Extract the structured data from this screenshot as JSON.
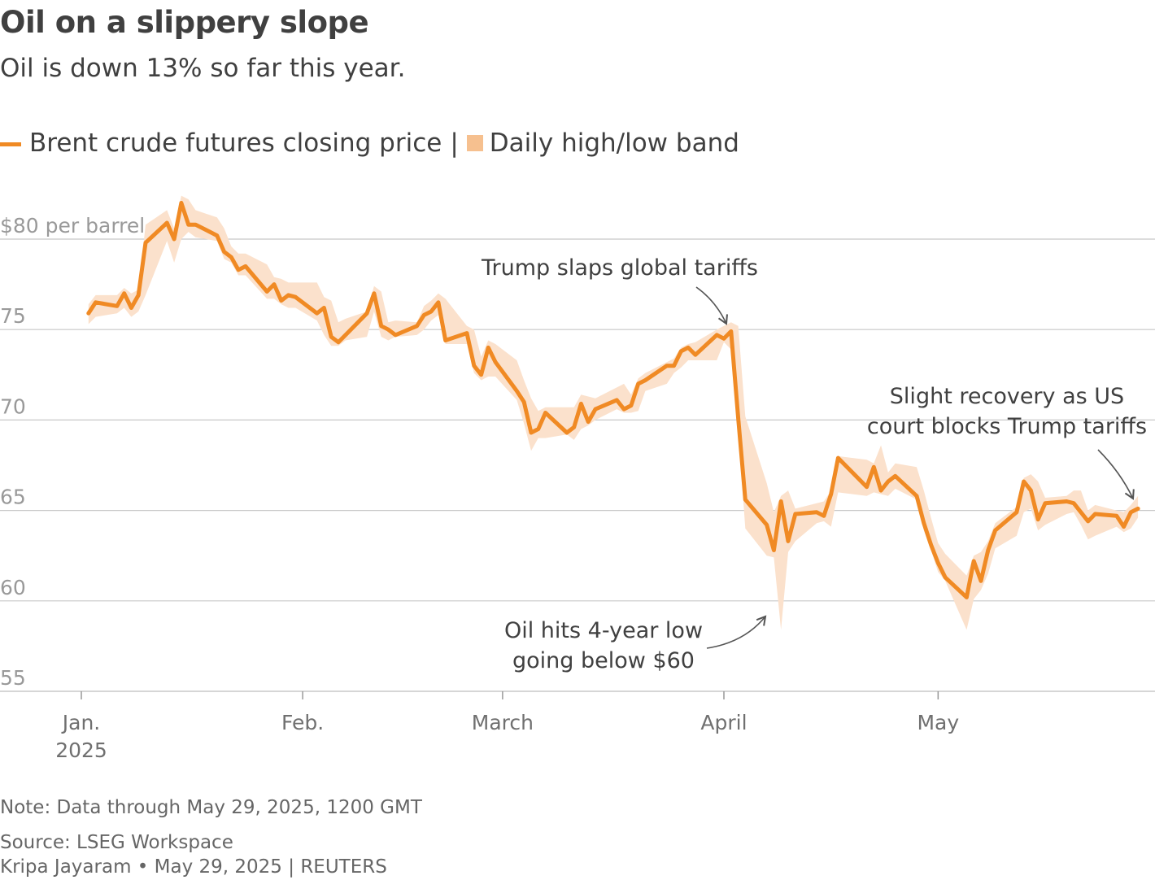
{
  "title": "Oil on a slippery slope",
  "subtitle": "Oil is down 13% so far this year.",
  "legend": {
    "line_label": "Brent crude futures closing price",
    "separator": "|",
    "band_label": "Daily high/low band"
  },
  "note": "Note: Data through May 29, 2025, 1200 GMT",
  "source": "Source: LSEG Workspace",
  "credit": "Kripa Jayaram • May 29, 2025 | REUTERS",
  "colors": {
    "line": "#f08a24",
    "band": "#fbe1cc",
    "grid": "#c8c8c8",
    "axis_text": "#999999",
    "label_text": "#404040"
  },
  "chart_data": {
    "type": "line",
    "title": "Oil on a slippery slope",
    "ylabel": "$80 per barrel",
    "ylim": [
      55,
      80
    ],
    "y_ticks": [
      {
        "value": 80,
        "label": "$80 per barrel"
      },
      {
        "value": 75,
        "label": "75"
      },
      {
        "value": 70,
        "label": "70"
      },
      {
        "value": 65,
        "label": "65"
      },
      {
        "value": 60,
        "label": "60"
      },
      {
        "value": 55,
        "label": "55"
      }
    ],
    "x_range": [
      "2024-12-31",
      "2025-05-29"
    ],
    "x_ticks": [
      {
        "date": "2025-01-01",
        "label": "Jan.",
        "sublabel": "2025"
      },
      {
        "date": "2025-02-01",
        "label": "Feb.",
        "sublabel": ""
      },
      {
        "date": "2025-03-01",
        "label": "March",
        "sublabel": ""
      },
      {
        "date": "2025-04-01",
        "label": "April",
        "sublabel": ""
      },
      {
        "date": "2025-05-01",
        "label": "May",
        "sublabel": ""
      }
    ],
    "grid": true,
    "legend_position": "top-left",
    "series": [
      {
        "name": "Brent crude futures closing price",
        "points": [
          [
            "2025-01-02",
            75.9
          ],
          [
            "2025-01-03",
            76.5
          ],
          [
            "2025-01-06",
            76.3
          ],
          [
            "2025-01-07",
            77.0
          ],
          [
            "2025-01-08",
            76.2
          ],
          [
            "2025-01-09",
            76.9
          ],
          [
            "2025-01-10",
            79.8
          ],
          [
            "2025-01-13",
            80.9
          ],
          [
            "2025-01-14",
            80.0
          ],
          [
            "2025-01-15",
            82.0
          ],
          [
            "2025-01-16",
            80.8
          ],
          [
            "2025-01-17",
            80.8
          ],
          [
            "2025-01-20",
            80.2
          ],
          [
            "2025-01-21",
            79.3
          ],
          [
            "2025-01-22",
            79.0
          ],
          [
            "2025-01-23",
            78.3
          ],
          [
            "2025-01-24",
            78.5
          ],
          [
            "2025-01-27",
            77.1
          ],
          [
            "2025-01-28",
            77.5
          ],
          [
            "2025-01-29",
            76.6
          ],
          [
            "2025-01-30",
            76.9
          ],
          [
            "2025-01-31",
            76.8
          ],
          [
            "2025-02-03",
            75.9
          ],
          [
            "2025-02-04",
            76.2
          ],
          [
            "2025-02-05",
            74.6
          ],
          [
            "2025-02-06",
            74.3
          ],
          [
            "2025-02-07",
            74.7
          ],
          [
            "2025-02-10",
            75.9
          ],
          [
            "2025-02-11",
            77.0
          ],
          [
            "2025-02-12",
            75.2
          ],
          [
            "2025-02-13",
            75.0
          ],
          [
            "2025-02-14",
            74.7
          ],
          [
            "2025-02-17",
            75.2
          ],
          [
            "2025-02-18",
            75.8
          ],
          [
            "2025-02-19",
            76.0
          ],
          [
            "2025-02-20",
            76.5
          ],
          [
            "2025-02-21",
            74.4
          ],
          [
            "2025-02-24",
            74.8
          ],
          [
            "2025-02-25",
            73.0
          ],
          [
            "2025-02-26",
            72.5
          ],
          [
            "2025-02-27",
            74.0
          ],
          [
            "2025-02-28",
            73.2
          ],
          [
            "2025-03-03",
            71.6
          ],
          [
            "2025-03-04",
            71.0
          ],
          [
            "2025-03-05",
            69.3
          ],
          [
            "2025-03-06",
            69.5
          ],
          [
            "2025-03-07",
            70.4
          ],
          [
            "2025-03-10",
            69.3
          ],
          [
            "2025-03-11",
            69.6
          ],
          [
            "2025-03-12",
            70.9
          ],
          [
            "2025-03-13",
            69.9
          ],
          [
            "2025-03-14",
            70.6
          ],
          [
            "2025-03-17",
            71.1
          ],
          [
            "2025-03-18",
            70.6
          ],
          [
            "2025-03-19",
            70.8
          ],
          [
            "2025-03-20",
            72.0
          ],
          [
            "2025-03-21",
            72.2
          ],
          [
            "2025-03-24",
            73.0
          ],
          [
            "2025-03-25",
            73.0
          ],
          [
            "2025-03-26",
            73.8
          ],
          [
            "2025-03-27",
            74.0
          ],
          [
            "2025-03-28",
            73.6
          ],
          [
            "2025-03-31",
            74.7
          ],
          [
            "2025-04-01",
            74.5
          ],
          [
            "2025-04-02",
            74.9
          ],
          [
            "2025-04-03",
            70.1
          ],
          [
            "2025-04-04",
            65.6
          ],
          [
            "2025-04-07",
            64.2
          ],
          [
            "2025-04-08",
            62.8
          ],
          [
            "2025-04-09",
            65.5
          ],
          [
            "2025-04-10",
            63.3
          ],
          [
            "2025-04-11",
            64.8
          ],
          [
            "2025-04-14",
            64.9
          ],
          [
            "2025-04-15",
            64.7
          ],
          [
            "2025-04-16",
            65.9
          ],
          [
            "2025-04-17",
            67.9
          ],
          [
            "2025-04-21",
            66.3
          ],
          [
            "2025-04-22",
            67.4
          ],
          [
            "2025-04-23",
            66.1
          ],
          [
            "2025-04-24",
            66.6
          ],
          [
            "2025-04-25",
            66.9
          ],
          [
            "2025-04-28",
            65.8
          ],
          [
            "2025-04-29",
            64.3
          ],
          [
            "2025-04-30",
            63.1
          ],
          [
            "2025-05-01",
            62.1
          ],
          [
            "2025-05-02",
            61.3
          ],
          [
            "2025-05-05",
            60.2
          ],
          [
            "2025-05-06",
            62.2
          ],
          [
            "2025-05-07",
            61.1
          ],
          [
            "2025-05-08",
            62.8
          ],
          [
            "2025-05-09",
            63.9
          ],
          [
            "2025-05-12",
            64.9
          ],
          [
            "2025-05-13",
            66.6
          ],
          [
            "2025-05-14",
            66.1
          ],
          [
            "2025-05-15",
            64.5
          ],
          [
            "2025-05-16",
            65.4
          ],
          [
            "2025-05-19",
            65.5
          ],
          [
            "2025-05-20",
            65.4
          ],
          [
            "2025-05-21",
            64.9
          ],
          [
            "2025-05-22",
            64.4
          ],
          [
            "2025-05-23",
            64.8
          ],
          [
            "2025-05-26",
            64.7
          ],
          [
            "2025-05-27",
            64.1
          ],
          [
            "2025-05-28",
            64.9
          ],
          [
            "2025-05-29",
            65.1
          ]
        ]
      },
      {
        "name": "Daily high/low band",
        "band": [
          [
            "2025-01-02",
            75.3,
            76.4
          ],
          [
            "2025-01-03",
            75.7,
            76.9
          ],
          [
            "2025-01-06",
            75.9,
            76.9
          ],
          [
            "2025-01-07",
            76.2,
            77.3
          ],
          [
            "2025-01-08",
            75.7,
            77.0
          ],
          [
            "2025-01-09",
            76.0,
            77.2
          ],
          [
            "2025-01-10",
            76.9,
            80.8
          ],
          [
            "2025-01-13",
            79.9,
            81.6
          ],
          [
            "2025-01-14",
            78.7,
            80.6
          ],
          [
            "2025-01-15",
            80.0,
            82.4
          ],
          [
            "2025-01-16",
            80.4,
            82.2
          ],
          [
            "2025-01-17",
            80.1,
            81.6
          ],
          [
            "2025-01-20",
            79.9,
            81.2
          ],
          [
            "2025-01-21",
            78.9,
            80.6
          ],
          [
            "2025-01-22",
            78.7,
            79.6
          ],
          [
            "2025-01-23",
            78.0,
            79.2
          ],
          [
            "2025-01-24",
            78.0,
            79.2
          ],
          [
            "2025-01-27",
            76.7,
            78.6
          ],
          [
            "2025-01-28",
            76.7,
            77.9
          ],
          [
            "2025-01-29",
            76.4,
            77.8
          ],
          [
            "2025-01-30",
            76.2,
            77.6
          ],
          [
            "2025-01-31",
            76.2,
            77.6
          ],
          [
            "2025-02-03",
            75.5,
            77.6
          ],
          [
            "2025-02-04",
            74.7,
            76.8
          ],
          [
            "2025-02-05",
            74.1,
            76.6
          ],
          [
            "2025-02-06",
            74.1,
            75.4
          ],
          [
            "2025-02-07",
            74.4,
            75.6
          ],
          [
            "2025-02-10",
            74.6,
            76.0
          ],
          [
            "2025-02-11",
            76.0,
            77.4
          ],
          [
            "2025-02-12",
            74.6,
            77.1
          ],
          [
            "2025-02-13",
            74.4,
            75.4
          ],
          [
            "2025-02-14",
            74.6,
            75.5
          ],
          [
            "2025-02-17",
            74.7,
            75.4
          ],
          [
            "2025-02-18",
            75.0,
            76.3
          ],
          [
            "2025-02-19",
            75.5,
            76.6
          ],
          [
            "2025-02-20",
            75.8,
            77.0
          ],
          [
            "2025-02-21",
            74.2,
            76.7
          ],
          [
            "2025-02-24",
            74.2,
            75.2
          ],
          [
            "2025-02-25",
            72.6,
            75.0
          ],
          [
            "2025-02-26",
            72.2,
            73.5
          ],
          [
            "2025-02-27",
            72.4,
            74.4
          ],
          [
            "2025-02-28",
            72.4,
            74.2
          ],
          [
            "2025-03-03",
            71.1,
            73.3
          ],
          [
            "2025-03-04",
            69.8,
            72.2
          ],
          [
            "2025-03-05",
            68.3,
            71.2
          ],
          [
            "2025-03-06",
            69.0,
            70.5
          ],
          [
            "2025-03-07",
            69.0,
            70.7
          ],
          [
            "2025-03-10",
            69.2,
            70.7
          ],
          [
            "2025-03-11",
            68.9,
            70.7
          ],
          [
            "2025-03-12",
            69.5,
            71.4
          ],
          [
            "2025-03-13",
            69.7,
            71.3
          ],
          [
            "2025-03-14",
            70.0,
            71.2
          ],
          [
            "2025-03-17",
            70.6,
            71.8
          ],
          [
            "2025-03-18",
            70.4,
            72.0
          ],
          [
            "2025-03-19",
            70.4,
            71.4
          ],
          [
            "2025-03-20",
            70.5,
            72.3
          ],
          [
            "2025-03-21",
            71.6,
            72.6
          ],
          [
            "2025-03-24",
            72.0,
            73.2
          ],
          [
            "2025-03-25",
            72.6,
            73.4
          ],
          [
            "2025-03-26",
            72.9,
            74.0
          ],
          [
            "2025-03-27",
            73.3,
            74.2
          ],
          [
            "2025-03-28",
            73.3,
            74.3
          ],
          [
            "2025-03-31",
            73.3,
            75.0
          ],
          [
            "2025-04-01",
            74.3,
            75.2
          ],
          [
            "2025-04-02",
            73.9,
            75.4
          ],
          [
            "2025-04-03",
            69.5,
            75.2
          ],
          [
            "2025-04-04",
            64.0,
            70.2
          ],
          [
            "2025-04-07",
            62.5,
            66.5
          ],
          [
            "2025-04-08",
            62.4,
            64.9
          ],
          [
            "2025-04-09",
            58.4,
            65.8
          ],
          [
            "2025-04-10",
            62.7,
            66.1
          ],
          [
            "2025-04-11",
            63.3,
            65.1
          ],
          [
            "2025-04-14",
            64.3,
            65.4
          ],
          [
            "2025-04-15",
            64.4,
            65.5
          ],
          [
            "2025-04-16",
            64.1,
            66.1
          ],
          [
            "2025-04-17",
            66.0,
            68.0
          ],
          [
            "2025-04-21",
            65.8,
            67.8
          ],
          [
            "2025-04-22",
            66.0,
            67.6
          ],
          [
            "2025-04-23",
            65.9,
            68.6
          ],
          [
            "2025-04-24",
            65.8,
            67.1
          ],
          [
            "2025-04-25",
            66.2,
            67.6
          ],
          [
            "2025-04-28",
            65.6,
            67.4
          ],
          [
            "2025-04-29",
            63.9,
            66.1
          ],
          [
            "2025-04-30",
            62.8,
            64.6
          ],
          [
            "2025-05-01",
            61.6,
            63.2
          ],
          [
            "2025-05-02",
            61.1,
            62.6
          ],
          [
            "2025-05-05",
            58.4,
            61.4
          ],
          [
            "2025-05-06",
            60.1,
            62.5
          ],
          [
            "2025-05-07",
            60.6,
            62.7
          ],
          [
            "2025-05-08",
            61.5,
            63.3
          ],
          [
            "2025-05-09",
            62.9,
            64.3
          ],
          [
            "2025-05-12",
            63.6,
            65.2
          ],
          [
            "2025-05-13",
            64.9,
            66.8
          ],
          [
            "2025-05-14",
            65.1,
            67.0
          ],
          [
            "2025-05-15",
            63.9,
            66.6
          ],
          [
            "2025-05-16",
            64.2,
            65.7
          ],
          [
            "2025-05-19",
            64.8,
            65.8
          ],
          [
            "2025-05-20",
            64.9,
            66.1
          ],
          [
            "2025-05-21",
            64.2,
            66.1
          ],
          [
            "2025-05-22",
            63.4,
            65.0
          ],
          [
            "2025-05-23",
            63.6,
            65.3
          ],
          [
            "2025-05-26",
            64.1,
            65.0
          ],
          [
            "2025-05-27",
            63.8,
            64.9
          ],
          [
            "2025-05-28",
            64.0,
            65.3
          ],
          [
            "2025-05-29",
            64.6,
            65.8
          ]
        ]
      }
    ],
    "annotations": [
      {
        "lines": [
          "Trump slaps global tariffs"
        ],
        "date": "2025-04-02",
        "value": 74.9
      },
      {
        "lines": [
          "Oil hits 4-year low",
          "going below $60"
        ],
        "date": "2025-04-09",
        "value": 59.0
      },
      {
        "lines": [
          "Slight recovery as US",
          "court blocks Trump tariffs"
        ],
        "date": "2025-05-29",
        "value": 65.6
      }
    ]
  }
}
